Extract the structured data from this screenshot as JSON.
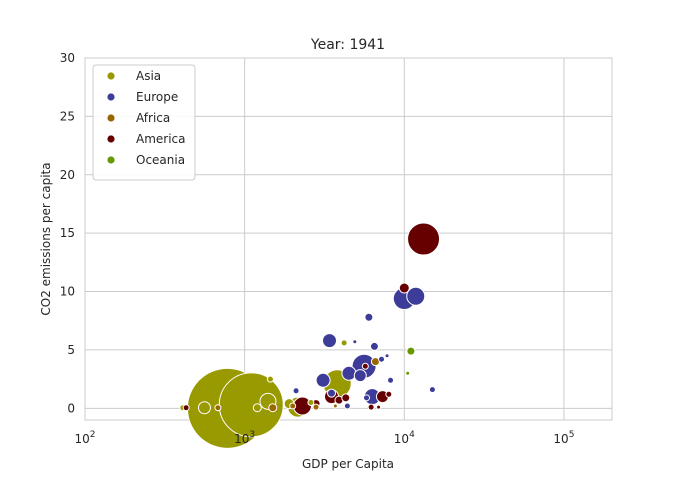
{
  "chart_data": {
    "type": "scatter",
    "title": "Year: 1941",
    "xlabel": "GDP per Capita",
    "ylabel": "CO2 emissions per capita",
    "x_scale": "log",
    "xlim": [
      100,
      200000
    ],
    "ylim": [
      -1,
      30
    ],
    "x_ticks": [
      {
        "value": 100,
        "base": "10",
        "exp": "2"
      },
      {
        "value": 1000,
        "base": "10",
        "exp": "3"
      },
      {
        "value": 10000,
        "base": "10",
        "exp": "4"
      },
      {
        "value": 100000,
        "base": "10",
        "exp": "5"
      }
    ],
    "y_ticks": [
      0,
      5,
      10,
      15,
      20,
      25,
      30
    ],
    "grid": true,
    "legend_position": "top-left",
    "series": [
      {
        "name": "Asia",
        "color": "#999900",
        "points": [
          {
            "x": 780,
            "y": 0.0,
            "size": 40
          },
          {
            "x": 1100,
            "y": 0.3,
            "size": 32
          },
          {
            "x": 1400,
            "y": 0.6,
            "size": 8
          },
          {
            "x": 1450,
            "y": 2.5,
            "size": 3
          },
          {
            "x": 1900,
            "y": 0.4,
            "size": 5
          },
          {
            "x": 2150,
            "y": 0.1,
            "size": 10
          },
          {
            "x": 3800,
            "y": 2.1,
            "size": 14
          },
          {
            "x": 4200,
            "y": 5.6,
            "size": 3
          },
          {
            "x": 6600,
            "y": 4.0,
            "size": 4
          },
          {
            "x": 410,
            "y": 0.05,
            "size": 3
          },
          {
            "x": 560,
            "y": 0.05,
            "size": 6
          },
          {
            "x": 1200,
            "y": 0.05,
            "size": 4
          },
          {
            "x": 2600,
            "y": 0.5,
            "size": 3
          }
        ]
      },
      {
        "name": "Europe",
        "color": "#3d3d99",
        "points": [
          {
            "x": 2100,
            "y": 1.5,
            "size": 3
          },
          {
            "x": 3100,
            "y": 2.4,
            "size": 7
          },
          {
            "x": 3400,
            "y": 5.8,
            "size": 7
          },
          {
            "x": 3500,
            "y": 1.3,
            "size": 4
          },
          {
            "x": 4500,
            "y": 3.0,
            "size": 7
          },
          {
            "x": 4900,
            "y": 5.7,
            "size": 2
          },
          {
            "x": 5300,
            "y": 2.8,
            "size": 6
          },
          {
            "x": 5600,
            "y": 3.6,
            "size": 12
          },
          {
            "x": 6000,
            "y": 7.8,
            "size": 4
          },
          {
            "x": 6300,
            "y": 1.0,
            "size": 8
          },
          {
            "x": 6500,
            "y": 5.3,
            "size": 4
          },
          {
            "x": 7200,
            "y": 4.2,
            "size": 3
          },
          {
            "x": 7800,
            "y": 4.5,
            "size": 2
          },
          {
            "x": 8200,
            "y": 2.4,
            "size": 3
          },
          {
            "x": 10000,
            "y": 9.4,
            "size": 11
          },
          {
            "x": 11800,
            "y": 9.6,
            "size": 9
          },
          {
            "x": 15000,
            "y": 1.6,
            "size": 3
          },
          {
            "x": 4400,
            "y": 0.2,
            "size": 3
          },
          {
            "x": 5800,
            "y": 0.9,
            "size": 3
          }
        ]
      },
      {
        "name": "Africa",
        "color": "#996600",
        "points": [
          {
            "x": 680,
            "y": 0.05,
            "size": 3
          },
          {
            "x": 1500,
            "y": 0.05,
            "size": 4
          },
          {
            "x": 2000,
            "y": 0.2,
            "size": 3
          },
          {
            "x": 2800,
            "y": 0.1,
            "size": 3
          },
          {
            "x": 6600,
            "y": 4.0,
            "size": 4
          },
          {
            "x": 3700,
            "y": 0.2,
            "size": 2
          }
        ]
      },
      {
        "name": "America",
        "color": "#660000",
        "points": [
          {
            "x": 13200,
            "y": 14.5,
            "size": 16
          },
          {
            "x": 10000,
            "y": 10.3,
            "size": 5
          },
          {
            "x": 2300,
            "y": 0.2,
            "size": 9
          },
          {
            "x": 2800,
            "y": 0.4,
            "size": 4
          },
          {
            "x": 3500,
            "y": 1.0,
            "size": 7
          },
          {
            "x": 3900,
            "y": 0.7,
            "size": 4
          },
          {
            "x": 4300,
            "y": 0.9,
            "size": 4
          },
          {
            "x": 5700,
            "y": 3.6,
            "size": 3
          },
          {
            "x": 6200,
            "y": 0.1,
            "size": 3
          },
          {
            "x": 6900,
            "y": 0.1,
            "size": 2
          },
          {
            "x": 7300,
            "y": 1.0,
            "size": 6
          },
          {
            "x": 8000,
            "y": 1.2,
            "size": 3
          },
          {
            "x": 430,
            "y": 0.05,
            "size": 3
          }
        ]
      },
      {
        "name": "Oceania",
        "color": "#669900",
        "points": [
          {
            "x": 11000,
            "y": 4.9,
            "size": 4
          },
          {
            "x": 10500,
            "y": 3.0,
            "size": 2
          }
        ]
      }
    ]
  }
}
